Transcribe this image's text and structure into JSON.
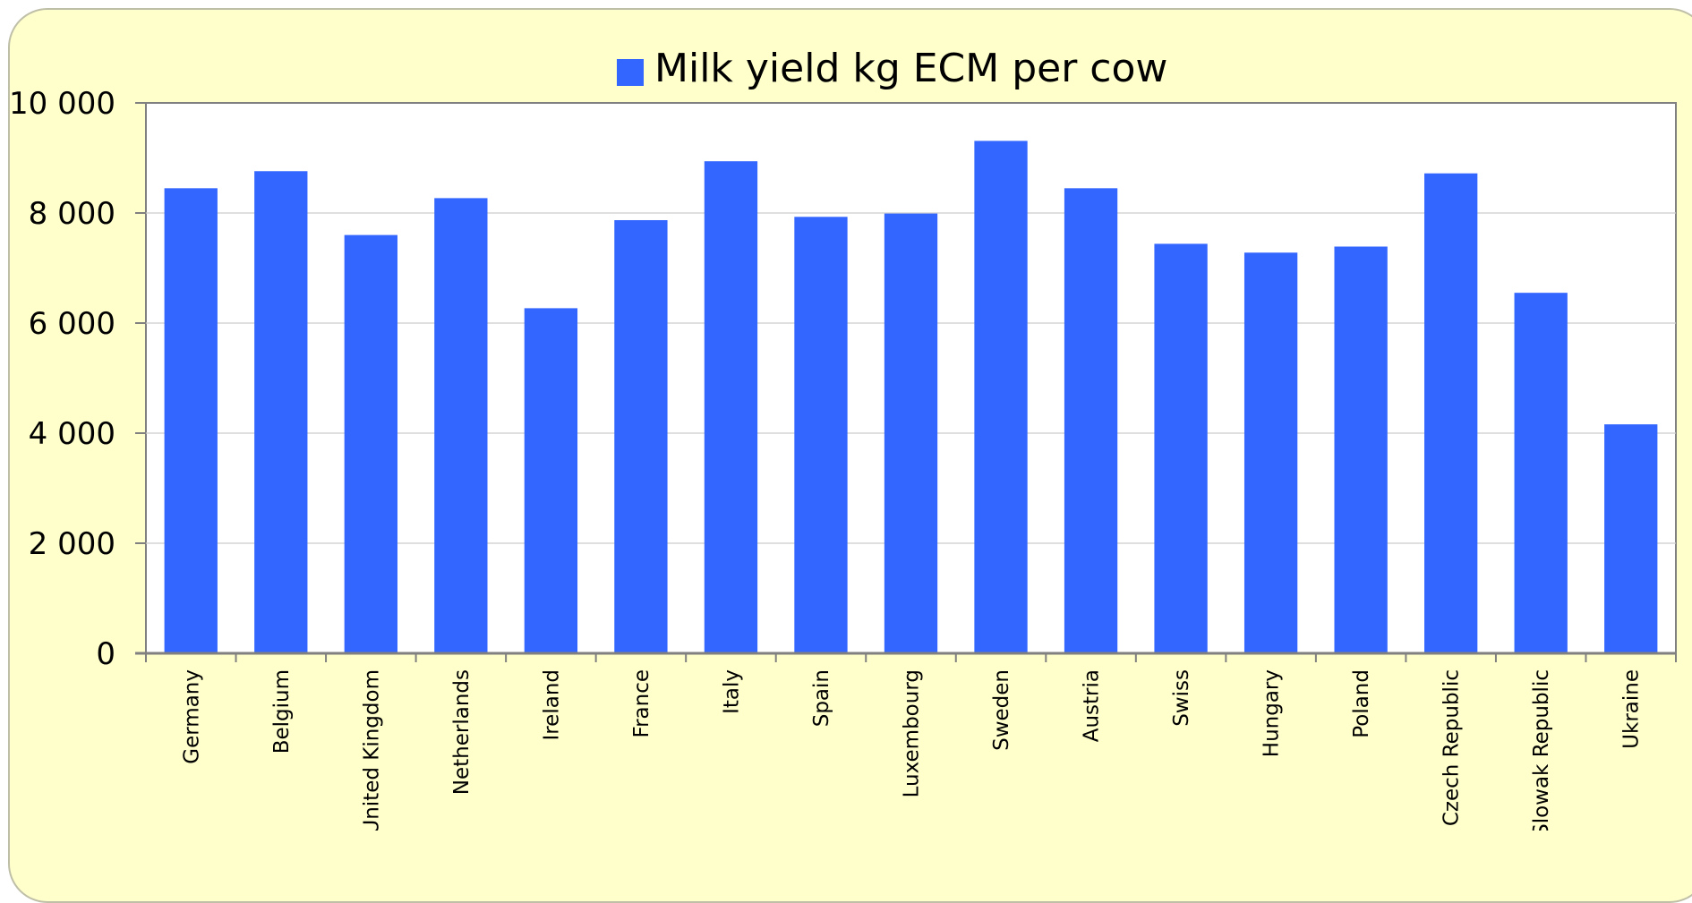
{
  "chart_data": {
    "type": "bar",
    "title": "",
    "xlabel": "",
    "ylabel": "",
    "legend": {
      "position": "top",
      "entries": [
        "Milk yield kg ECM per cow"
      ]
    },
    "grid": true,
    "ylim": [
      0,
      10000
    ],
    "yticks": [
      0,
      2000,
      4000,
      6000,
      8000,
      10000
    ],
    "ytick_labels": [
      "0",
      "2 000",
      "4 000",
      "6 000",
      "8 000",
      "10 000"
    ],
    "categories": [
      "Germany",
      "Belgium",
      "United Kingdom",
      "Netherlands",
      "Ireland",
      "France",
      "Italy",
      "Spain",
      "Luxembourg",
      "Sweden",
      "Austria",
      "Swiss",
      "Hungary",
      "Poland",
      "Czech Republic",
      "Slowak Republic",
      "Ukraine"
    ],
    "series": [
      {
        "name": "Milk yield kg ECM per cow",
        "color": "#3366ff",
        "values": [
          8450,
          8760,
          7600,
          8270,
          6270,
          7870,
          8940,
          7930,
          7990,
          9310,
          8450,
          7440,
          7280,
          7390,
          8720,
          6550,
          4160
        ]
      }
    ]
  },
  "colors": {
    "background": "#ffffcc",
    "plot_area": "#ffffff",
    "bar": "#3366ff",
    "gridline": "#cccccc",
    "axis": "#808080"
  }
}
